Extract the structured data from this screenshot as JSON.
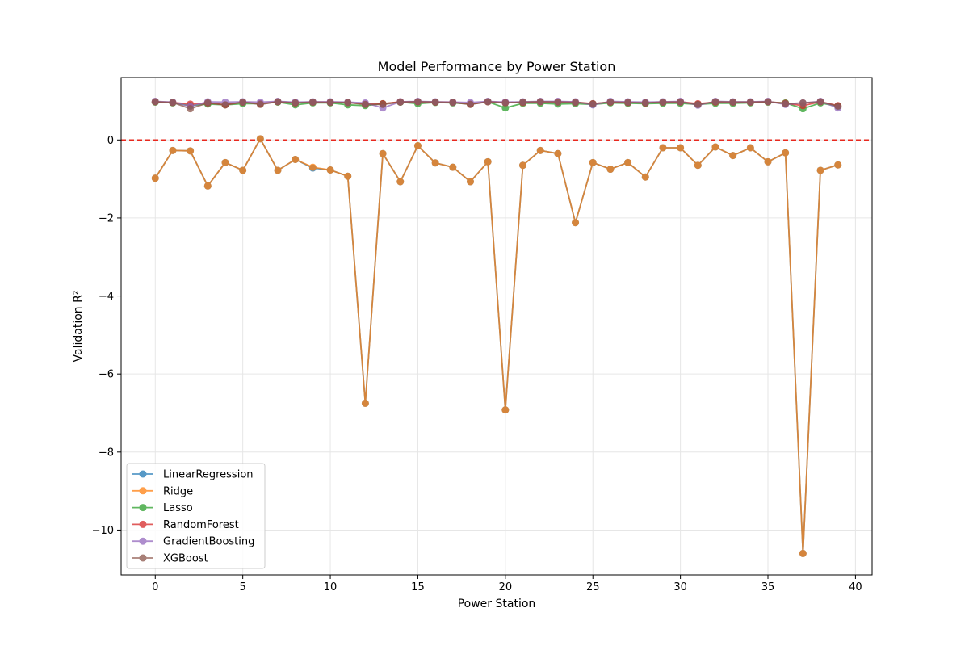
{
  "chart_data": {
    "type": "line",
    "title": "Model Performance by Power Station",
    "xlabel": "Power Station",
    "ylabel": "Validation R²",
    "xlim": [
      -1.95,
      40.95
    ],
    "ylim": [
      -11.15,
      1.6
    ],
    "xticks": [
      0,
      5,
      10,
      15,
      20,
      25,
      30,
      35,
      40
    ],
    "yticks": [
      -10,
      -8,
      -6,
      -4,
      -2,
      0
    ],
    "xtick_labels": [
      "0",
      "5",
      "10",
      "15",
      "20",
      "25",
      "30",
      "35",
      "40"
    ],
    "ytick_labels": [
      "−10",
      "−8",
      "−6",
      "−4",
      "−2",
      "0"
    ],
    "grid": true,
    "legend_position": "lower-left",
    "reference_line": {
      "y": 0,
      "style": "dashed",
      "color": "#e8281e"
    },
    "x": [
      0,
      1,
      2,
      3,
      4,
      5,
      6,
      7,
      8,
      9,
      10,
      11,
      12,
      13,
      14,
      15,
      16,
      17,
      18,
      19,
      20,
      21,
      22,
      23,
      24,
      25,
      26,
      27,
      28,
      29,
      30,
      31,
      32,
      33,
      34,
      35,
      36,
      37,
      38,
      39
    ],
    "series": [
      {
        "name": "LinearRegression",
        "color": "#1f77b4",
        "values": [
          -0.98,
          -0.27,
          -0.28,
          -1.18,
          -0.58,
          -0.78,
          0.03,
          -0.78,
          -0.5,
          -0.72,
          -0.77,
          -0.93,
          -6.75,
          -0.35,
          -1.07,
          -0.15,
          -0.59,
          -0.7,
          -1.07,
          -0.56,
          -6.92,
          -0.65,
          -0.27,
          -0.35,
          -2.12,
          -0.58,
          -0.75,
          -0.58,
          -0.95,
          -0.2,
          -0.2,
          -0.65,
          -0.18,
          -0.4,
          -0.2,
          -0.56,
          -0.33,
          -10.6,
          -0.78,
          -0.64
        ]
      },
      {
        "name": "Ridge",
        "color": "#ff7f0e",
        "values": [
          -0.98,
          -0.27,
          -0.28,
          -1.18,
          -0.58,
          -0.78,
          0.03,
          -0.78,
          -0.5,
          -0.7,
          -0.77,
          -0.93,
          -6.75,
          -0.35,
          -1.07,
          -0.15,
          -0.59,
          -0.7,
          -1.07,
          -0.56,
          -6.92,
          -0.65,
          -0.27,
          -0.35,
          -2.12,
          -0.58,
          -0.75,
          -0.58,
          -0.95,
          -0.2,
          -0.2,
          -0.65,
          -0.18,
          -0.4,
          -0.2,
          -0.56,
          -0.33,
          -10.6,
          -0.78,
          -0.64
        ]
      },
      {
        "name": "Lasso",
        "color": "#2ca02c",
        "values": [
          0.97,
          0.95,
          0.88,
          0.92,
          0.9,
          0.93,
          0.93,
          0.97,
          0.9,
          0.95,
          0.95,
          0.9,
          0.88,
          0.93,
          0.97,
          0.93,
          0.96,
          0.95,
          0.92,
          0.98,
          0.82,
          0.94,
          0.94,
          0.92,
          0.93,
          0.91,
          0.95,
          0.94,
          0.93,
          0.94,
          0.94,
          0.91,
          0.94,
          0.94,
          0.95,
          0.97,
          0.95,
          0.8,
          0.95,
          0.86
        ]
      },
      {
        "name": "RandomForest",
        "color": "#d62728",
        "values": [
          0.98,
          0.96,
          0.92,
          0.95,
          0.9,
          0.97,
          0.93,
          0.98,
          0.95,
          0.97,
          0.97,
          0.96,
          0.92,
          0.93,
          0.98,
          0.98,
          0.97,
          0.97,
          0.92,
          0.98,
          0.96,
          0.96,
          0.98,
          0.98,
          0.97,
          0.93,
          0.97,
          0.96,
          0.95,
          0.97,
          0.98,
          0.93,
          0.97,
          0.97,
          0.97,
          0.98,
          0.94,
          0.88,
          0.98,
          0.88
        ]
      },
      {
        "name": "GradientBoosting",
        "color": "#9467bd",
        "values": [
          0.99,
          0.97,
          0.86,
          0.98,
          0.97,
          0.98,
          0.97,
          0.99,
          0.97,
          0.98,
          0.98,
          0.97,
          0.95,
          0.82,
          0.98,
          0.99,
          0.98,
          0.97,
          0.96,
          0.99,
          0.97,
          0.98,
          0.99,
          0.99,
          0.98,
          0.9,
          0.99,
          0.98,
          0.97,
          0.98,
          0.99,
          0.89,
          0.99,
          0.98,
          0.98,
          0.99,
          0.91,
          0.95,
          0.99,
          0.82
        ]
      },
      {
        "name": "XGBoost",
        "color": "#8c564b",
        "values": [
          0.98,
          0.96,
          0.8,
          0.95,
          0.9,
          0.97,
          0.91,
          0.98,
          0.95,
          0.97,
          0.96,
          0.96,
          0.91,
          0.91,
          0.97,
          0.98,
          0.97,
          0.96,
          0.91,
          0.98,
          0.95,
          0.97,
          0.98,
          0.97,
          0.96,
          0.93,
          0.97,
          0.96,
          0.95,
          0.97,
          0.97,
          0.91,
          0.98,
          0.97,
          0.97,
          0.98,
          0.93,
          0.95,
          0.98,
          0.87
        ]
      }
    ]
  }
}
